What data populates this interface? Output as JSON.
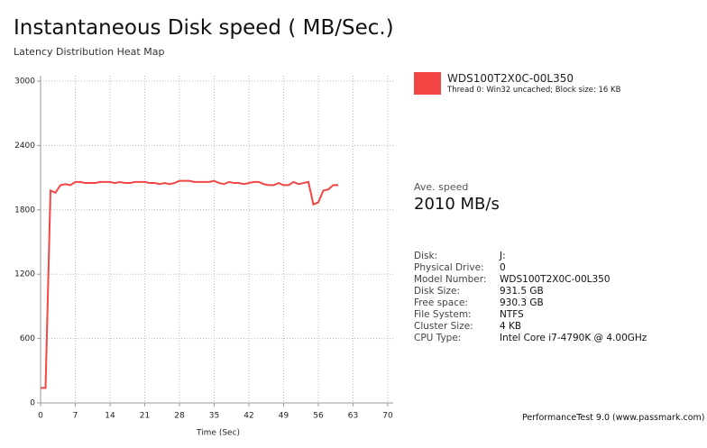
{
  "chart_data": {
    "type": "line",
    "title": "Instantaneous Disk speed ( MB/Sec.)",
    "subtitle": "Latency Distribution Heat Map",
    "xlabel": "Time (Sec)",
    "x": [
      0,
      1,
      2,
      3,
      4,
      5,
      6,
      7,
      8,
      9,
      10,
      11,
      12,
      13,
      14,
      15,
      16,
      17,
      18,
      19,
      20,
      21,
      22,
      23,
      24,
      25,
      26,
      27,
      28,
      29,
      30,
      31,
      32,
      33,
      34,
      35,
      36,
      37,
      38,
      39,
      40,
      41,
      42,
      43,
      44,
      45,
      46,
      47,
      48,
      49,
      50,
      51,
      52,
      53,
      54,
      55,
      56,
      57,
      58,
      59,
      60
    ],
    "series": [
      {
        "name": "WDS100T2X0C-00L350",
        "color": "#f44545",
        "values": [
          140,
          140,
          1980,
          1960,
          2030,
          2040,
          2030,
          2060,
          2060,
          2050,
          2050,
          2050,
          2060,
          2060,
          2060,
          2050,
          2060,
          2050,
          2050,
          2060,
          2060,
          2060,
          2050,
          2050,
          2040,
          2050,
          2040,
          2050,
          2070,
          2070,
          2070,
          2060,
          2060,
          2060,
          2060,
          2070,
          2050,
          2040,
          2060,
          2050,
          2050,
          2040,
          2050,
          2060,
          2060,
          2040,
          2030,
          2030,
          2050,
          2030,
          2030,
          2060,
          2040,
          2050,
          2060,
          1850,
          1870,
          1980,
          1990,
          2030,
          2030
        ]
      }
    ],
    "xlim": [
      0,
      70
    ],
    "xticks": [
      0,
      7,
      14,
      21,
      28,
      35,
      42,
      49,
      56,
      63,
      70
    ],
    "ylim": [
      0,
      3000
    ],
    "yticks": [
      0,
      600,
      1200,
      1800,
      2400,
      3000
    ],
    "grid": true
  },
  "legend_note": "Thread 0: Win32 uncached; Block size: 16 KB",
  "average": {
    "label": "Ave. speed",
    "value": "2010 MB/s"
  },
  "info": [
    [
      "Disk:",
      "J:"
    ],
    [
      "Physical Drive:",
      "0"
    ],
    [
      "Model Number:",
      "WDS100T2X0C-00L350"
    ],
    [
      "Disk Size:",
      "931.5 GB"
    ],
    [
      "Free space:",
      "930.3 GB"
    ],
    [
      "File System:",
      "NTFS"
    ],
    [
      "Cluster Size:",
      "4 KB"
    ],
    [
      "CPU Type:",
      "Intel Core i7-4790K @ 4.00GHz"
    ]
  ],
  "footer": "PerformanceTest 9.0 (www.passmark.com)"
}
